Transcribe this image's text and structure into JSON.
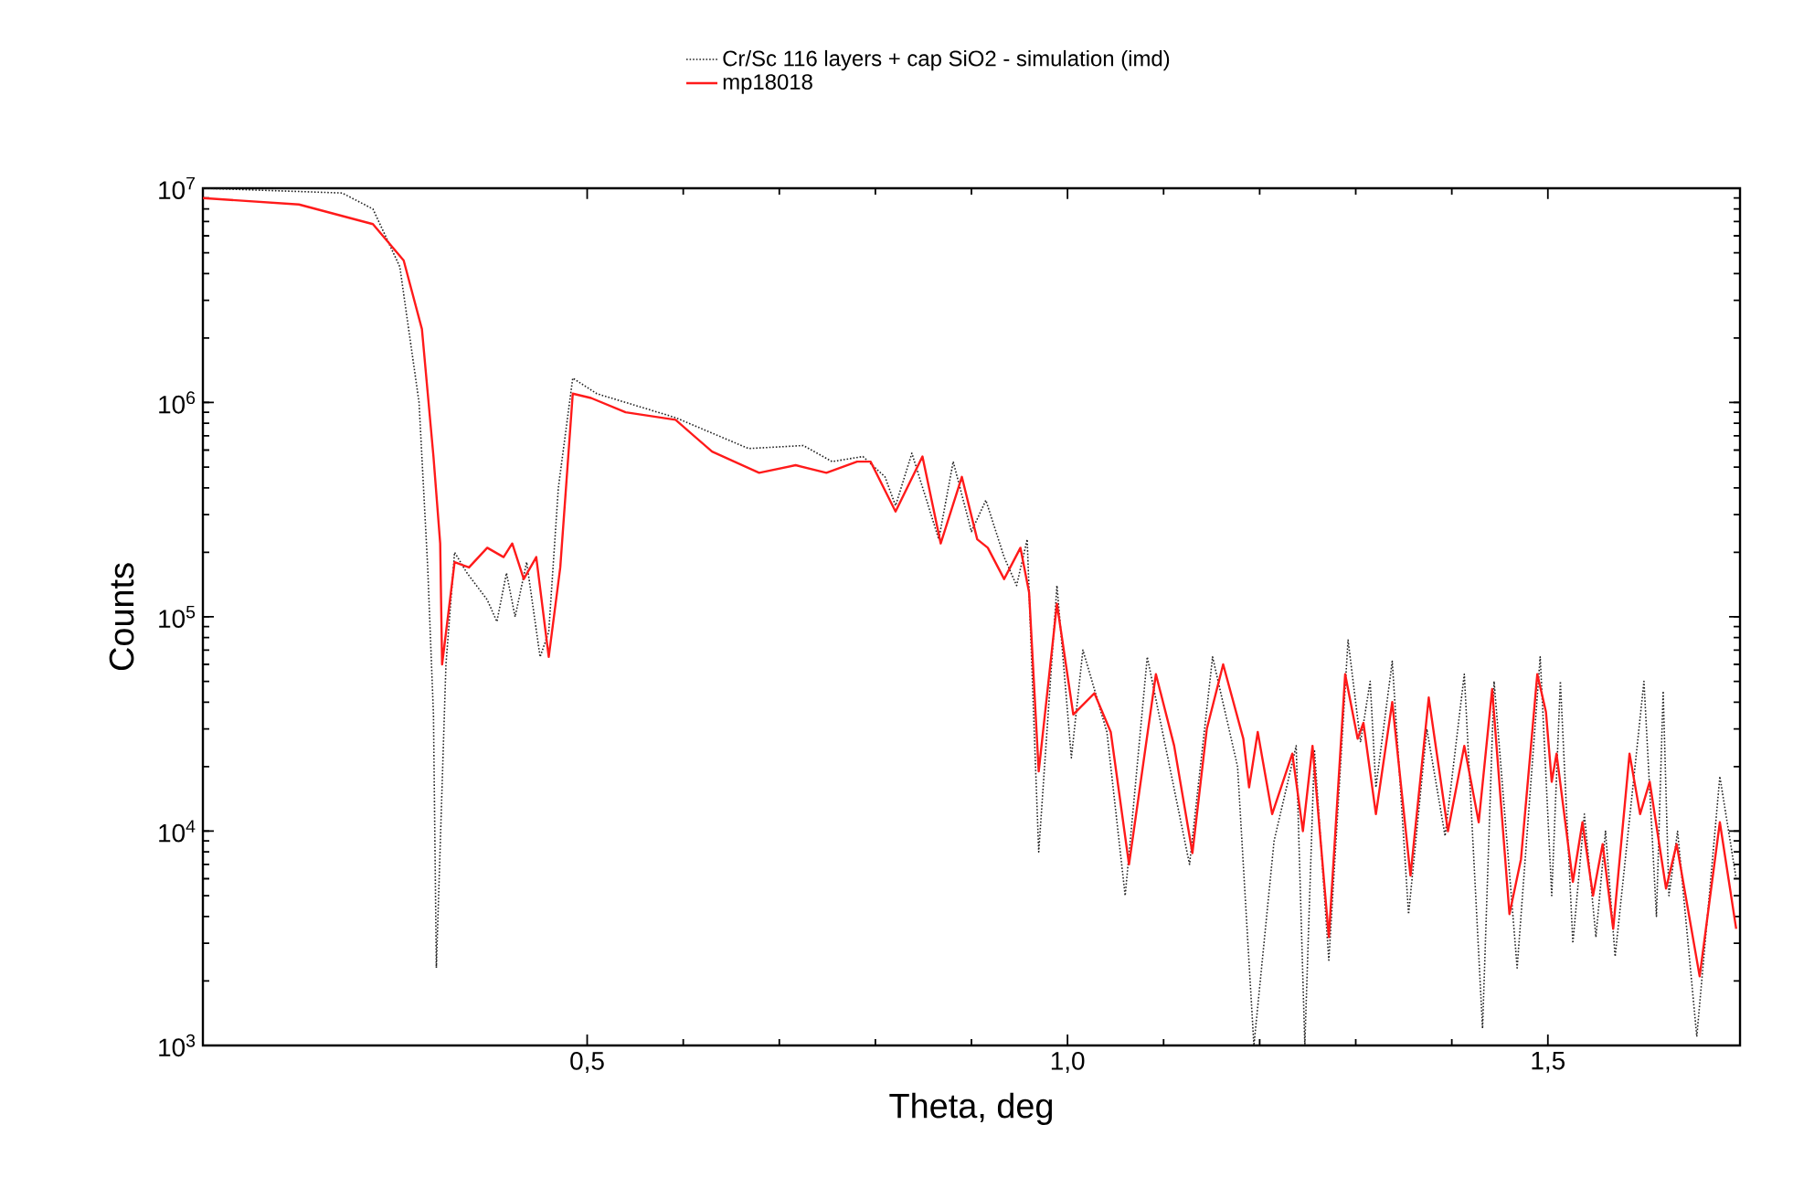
{
  "chart_data": {
    "type": "line",
    "xlabel": "Theta, deg",
    "ylabel": "Counts",
    "xlim": [
      0.1,
      1.7
    ],
    "ylim": [
      1000,
      10000000
    ],
    "log": "y",
    "legend": "top",
    "xticks": [
      {
        "value": 0.5,
        "label": "0,5"
      },
      {
        "value": 1.0,
        "label": "1,0"
      },
      {
        "value": 1.5,
        "label": "1,5"
      }
    ],
    "yticks": [
      {
        "value": 1000,
        "label": "10$^{3}$"
      },
      {
        "value": 10000,
        "label": "10$^{4}$"
      },
      {
        "value": 100000,
        "label": "10$^{5}$"
      },
      {
        "value": 1000000,
        "label": "10$^{6}$"
      },
      {
        "value": 10000000,
        "label": "10$^{7}$"
      }
    ],
    "series": [
      {
        "name": "Cr/Sc 116 layers + cap SiO2 - simulation (imd)",
        "color": "#222222",
        "line_style": "dotted",
        "x": [
          0.1,
          0.245,
          0.277,
          0.305,
          0.325,
          0.334,
          0.34,
          0.343,
          0.353,
          0.362,
          0.375,
          0.396,
          0.406,
          0.416,
          0.425,
          0.437,
          0.451,
          0.46,
          0.47,
          0.485,
          0.51,
          0.592,
          0.668,
          0.725,
          0.755,
          0.787,
          0.81,
          0.821,
          0.838,
          0.866,
          0.881,
          0.9,
          0.915,
          0.934,
          0.947,
          0.958,
          0.97,
          0.989,
          1.004,
          1.016,
          1.041,
          1.06,
          1.083,
          1.111,
          1.127,
          1.151,
          1.177,
          1.194,
          1.215,
          1.238,
          1.247,
          1.257,
          1.272,
          1.292,
          1.305,
          1.315,
          1.321,
          1.338,
          1.355,
          1.374,
          1.393,
          1.413,
          1.432,
          1.444,
          1.468,
          1.492,
          1.504,
          1.513,
          1.526,
          1.538,
          1.55,
          1.56,
          1.57,
          1.6,
          1.613,
          1.62,
          1.626,
          1.635,
          1.655,
          1.679,
          1.696
        ],
        "values": [
          10000000,
          9500000,
          8000000,
          4300000,
          1000000,
          170000,
          35000,
          2300,
          60000,
          200000,
          160000,
          120000,
          95000,
          160000,
          100000,
          180000,
          65000,
          85000,
          400000,
          1300000,
          1100000,
          850000,
          610000,
          630000,
          530000,
          560000,
          450000,
          330000,
          580000,
          230000,
          530000,
          250000,
          350000,
          190000,
          140000,
          230000,
          8000,
          140000,
          22000,
          70000,
          29000,
          5000,
          65000,
          null,
          7000,
          65000,
          20000,
          1000,
          9000,
          25000,
          1000,
          24000,
          2500,
          78000,
          26000,
          50000,
          16000,
          62000,
          4100,
          30000,
          9500,
          54000,
          1200,
          50000,
          2300,
          65000,
          5000,
          50000,
          3000,
          12000,
          3200,
          10000,
          2600,
          50000,
          4000,
          45000,
          5000,
          10000,
          1100,
          18000,
          6000
        ]
      },
      {
        "name": "mp18018",
        "color": "#ff1a1a",
        "line_style": "solid",
        "x": [
          0.1,
          0.2,
          0.277,
          0.309,
          0.328,
          0.34,
          0.347,
          0.349,
          0.362,
          0.377,
          0.396,
          0.413,
          0.422,
          0.434,
          0.447,
          0.46,
          0.472,
          0.485,
          0.504,
          0.54,
          0.592,
          0.63,
          0.679,
          0.717,
          0.749,
          0.781,
          0.795,
          0.821,
          0.849,
          0.868,
          0.89,
          0.906,
          0.917,
          0.934,
          0.951,
          0.96,
          0.97,
          0.989,
          1.006,
          1.028,
          1.045,
          1.064,
          1.092,
          1.111,
          1.13,
          1.145,
          1.162,
          1.183,
          1.189,
          1.198,
          1.213,
          1.234,
          1.245,
          1.255,
          1.272,
          1.289,
          1.302,
          1.308,
          1.321,
          1.338,
          1.357,
          1.376,
          1.396,
          1.413,
          1.428,
          1.442,
          1.46,
          1.472,
          1.489,
          1.498,
          1.504,
          1.509,
          1.526,
          1.536,
          1.547,
          1.557,
          1.568,
          1.585,
          1.596,
          1.606,
          1.623,
          1.634,
          1.658,
          1.679,
          1.696
        ],
        "values": [
          9000000,
          8400000,
          6800000,
          4600000,
          2200000,
          560000,
          220000,
          60000,
          180000,
          170000,
          210000,
          190000,
          220000,
          150000,
          190000,
          65000,
          170000,
          1100000,
          1050000,
          900000,
          830000,
          590000,
          470000,
          510000,
          470000,
          530000,
          530000,
          310000,
          560000,
          220000,
          450000,
          230000,
          210000,
          150000,
          210000,
          130000,
          19000,
          115000,
          35000,
          44000,
          29000,
          7000,
          54000,
          25000,
          7900,
          30000,
          60000,
          27000,
          16000,
          29000,
          12000,
          23000,
          10000,
          25000,
          3200,
          54000,
          27000,
          32000,
          12000,
          40000,
          6200,
          42000,
          10000,
          25000,
          11000,
          46000,
          4100,
          7400,
          54000,
          36000,
          17000,
          23000,
          5800,
          11000,
          5000,
          8700,
          3500,
          23000,
          12000,
          17000,
          5400,
          8700,
          2100,
          11000,
          3500
        ]
      }
    ]
  }
}
